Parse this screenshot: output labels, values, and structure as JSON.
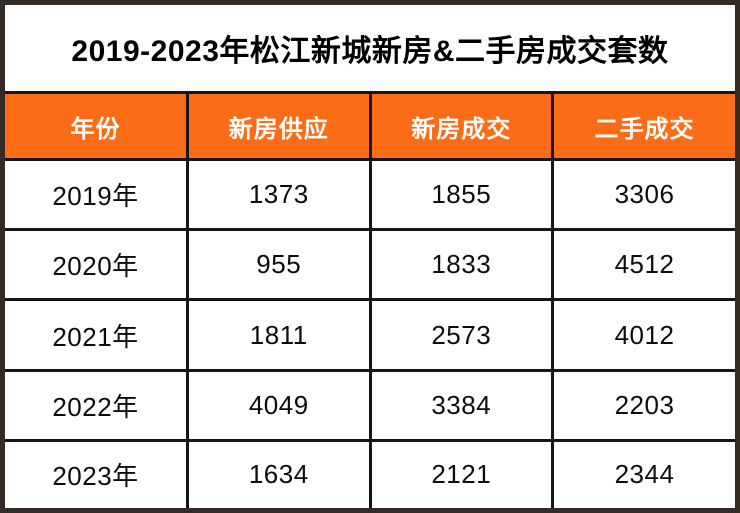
{
  "title": "2019-2023年松江新城新房&二手房成交套数",
  "colors": {
    "accent_orange": "#fa6c15",
    "frame_border_dark": "#342a26",
    "grid_black": "#161616",
    "header_text": "#ffffff",
    "body_text": "#0c0c0c",
    "title_text": "#000000"
  },
  "chart_data": {
    "type": "table",
    "title": "2019-2023年松江新城新房&二手房成交套数",
    "columns": [
      "年份",
      "新房供应",
      "新房成交",
      "二手成交"
    ],
    "rows": [
      [
        "2019年",
        "1373",
        "1855",
        "3306"
      ],
      [
        "2020年",
        "955",
        "1833",
        "4512"
      ],
      [
        "2021年",
        "1811",
        "2573",
        "4012"
      ],
      [
        "2022年",
        "4049",
        "3384",
        "2203"
      ],
      [
        "2023年",
        "1634",
        "2121",
        "2344"
      ]
    ]
  }
}
